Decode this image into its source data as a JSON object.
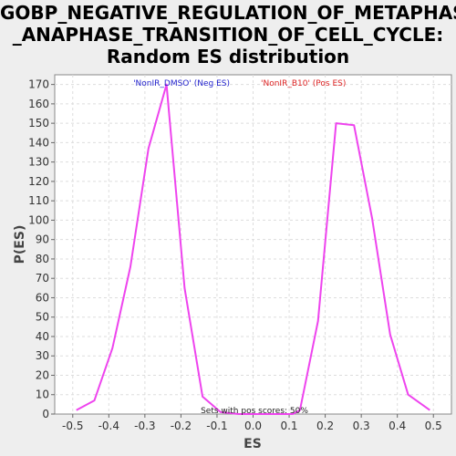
{
  "chart_data": {
    "type": "line",
    "title_lines": [
      "GOBP_NEGATIVE_REGULATION_OF_METAPHASE",
      "_ANAPHASE_TRANSITION_OF_CELL_CYCLE:",
      "Random ES distribution"
    ],
    "xlabel": "ES",
    "ylabel": "P(ES)",
    "xlim": [
      -0.55,
      0.55
    ],
    "ylim": [
      0,
      175
    ],
    "x_ticks": [
      "-0.5",
      "-0.4",
      "-0.3",
      "-0.2",
      "-0.1",
      "0.0",
      "0.1",
      "0.2",
      "0.3",
      "0.4",
      "0.5"
    ],
    "x_tick_values": [
      -0.5,
      -0.4,
      -0.3,
      -0.2,
      -0.1,
      0.0,
      0.1,
      0.2,
      0.3,
      0.4,
      0.5
    ],
    "y_ticks": [
      "0",
      "10",
      "20",
      "30",
      "40",
      "50",
      "60",
      "70",
      "80",
      "90",
      "100",
      "110",
      "120",
      "130",
      "140",
      "150",
      "160",
      "170"
    ],
    "y_tick_values": [
      0,
      10,
      20,
      30,
      40,
      50,
      60,
      70,
      80,
      90,
      100,
      110,
      120,
      130,
      140,
      150,
      160,
      170
    ],
    "grid": true,
    "legend": [
      {
        "label": "'NonIR_DMSO' (Neg ES)",
        "color": "#2222cc"
      },
      {
        "label": "'NonIR_B10' (Pos ES)",
        "color": "#dd2222"
      }
    ],
    "legend_placement": "top-center",
    "annotation": "Sets with pos scores: 50%",
    "series": [
      {
        "color": "#ee44ee",
        "x": [
          -0.49,
          -0.44,
          -0.39,
          -0.34,
          -0.29,
          -0.24,
          -0.19,
          -0.14,
          -0.09,
          -0.04,
          0.01,
          0.06,
          0.11,
          0.13,
          0.18,
          0.23,
          0.28,
          0.33,
          0.38,
          0.43,
          0.49
        ],
        "y": [
          2,
          7,
          34,
          76,
          137,
          170,
          65,
          9,
          1,
          0,
          0,
          0,
          0,
          2,
          48,
          150,
          149,
          101,
          41,
          10,
          2
        ]
      }
    ]
  }
}
